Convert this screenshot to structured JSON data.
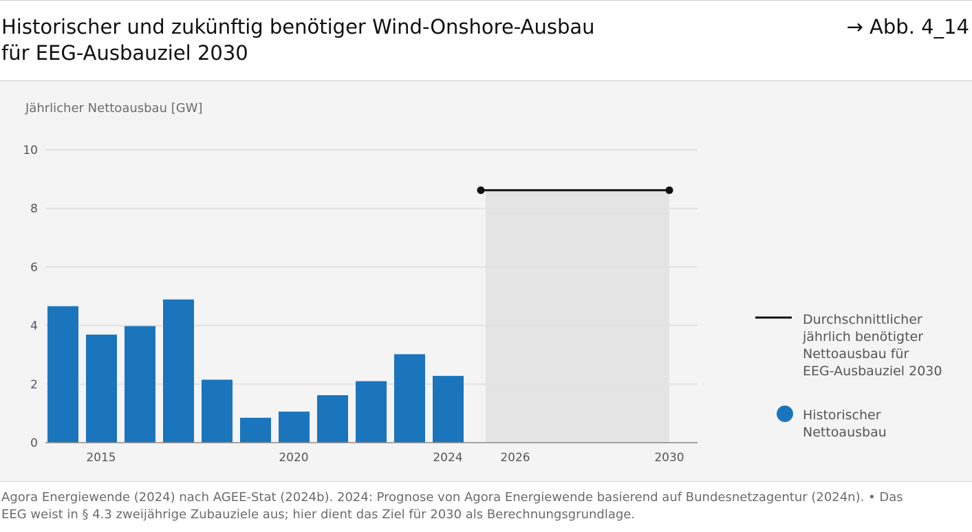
{
  "header": {
    "title_line1": "Historischer und zukünftig benötiger Wind-Onshore-Ausbau",
    "title_line2": "für EEG-Ausbauziel 2030",
    "figure_ref": "→ Abb. 4_14"
  },
  "footer": {
    "source_line1": "Agora Energiewende (2024) nach AGEE-Stat (2024b). 2024: Prognose von Agora Energiewende basierend auf Bundesnetzagentur (2024n). • Das",
    "source_line2": "EEG weist in § 4.3 zweijährige Zubauziele aus; hier dient das Ziel für 2030 als Berechnungsgrundlage."
  },
  "chart_data": {
    "type": "bar",
    "ylabel": "Jährlicher Nettoausbau [GW]",
    "ylim": [
      0,
      10
    ],
    "yticks": [
      "0",
      "2",
      "4",
      "6",
      "8",
      "10"
    ],
    "ytick_values": [
      0,
      2,
      4,
      6,
      8,
      10
    ],
    "xtick_labels": [
      "2015",
      "2020",
      "2024",
      "2026",
      "2030"
    ],
    "xtick_years": [
      2015,
      2020,
      2024,
      2026,
      2030
    ],
    "grid": true,
    "legend_position": "right",
    "series": [
      {
        "name": "Historischer Nettoausbau",
        "name_lines": [
          "Historischer",
          "Nettoausbau"
        ],
        "type": "bar",
        "color": "#1a75bc",
        "x": [
          2014,
          2015,
          2016,
          2017,
          2018,
          2019,
          2020,
          2021,
          2022,
          2023,
          2024
        ],
        "values": [
          4.66,
          3.69,
          3.98,
          4.89,
          2.15,
          0.85,
          1.06,
          1.62,
          2.1,
          3.02,
          2.28
        ]
      },
      {
        "name": "Durchschnittlicher jährlich benötigter Nettoausbau für EEG-Ausbauziel 2030",
        "name_lines": [
          "Durchschnittlicher",
          "jährlich benötigter",
          "Nettoausbau für",
          "EEG-Ausbauziel 2030"
        ],
        "type": "line",
        "color": "#111111",
        "x": [
          2025,
          2030
        ],
        "values": [
          8.62,
          8.62
        ]
      }
    ],
    "shaded_range": {
      "x_from": 2025,
      "x_to": 2030,
      "color": "#e4e4e4"
    }
  }
}
